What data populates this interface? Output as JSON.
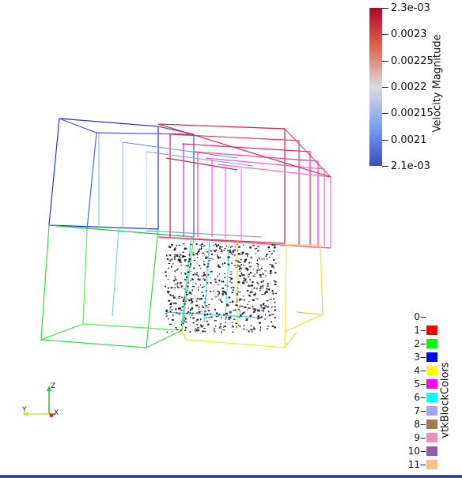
{
  "colors": {
    "background": "#ffffff",
    "accent_border": "#3a4a9a"
  },
  "scalar_bar": {
    "title": "Velocity Magnitude",
    "ticks": [
      "2.3e-03",
      "0.0023",
      "0.00225",
      "0.0022",
      "0.00215",
      "0.0021",
      "2.1e-03"
    ],
    "colormap": "cool-to-warm"
  },
  "legend": {
    "title": "vtkBlockColors",
    "items": [
      {
        "label": "0",
        "color": ""
      },
      {
        "label": "1",
        "color": "#ff0000"
      },
      {
        "label": "2",
        "color": "#00ff00"
      },
      {
        "label": "3",
        "color": "#0000ff"
      },
      {
        "label": "4",
        "color": "#ffff00"
      },
      {
        "label": "5",
        "color": "#ff00ff"
      },
      {
        "label": "6",
        "color": "#00ffff"
      },
      {
        "label": "7",
        "color": "#a3a3f0"
      },
      {
        "label": "8",
        "color": "#9c7a52"
      },
      {
        "label": "9",
        "color": "#f08cb8"
      },
      {
        "label": "10",
        "color": "#8e5fb0"
      },
      {
        "label": "11",
        "color": "#f5c08a"
      }
    ]
  },
  "axes": {
    "z": "Z",
    "y": "Y",
    "x": "X"
  }
}
